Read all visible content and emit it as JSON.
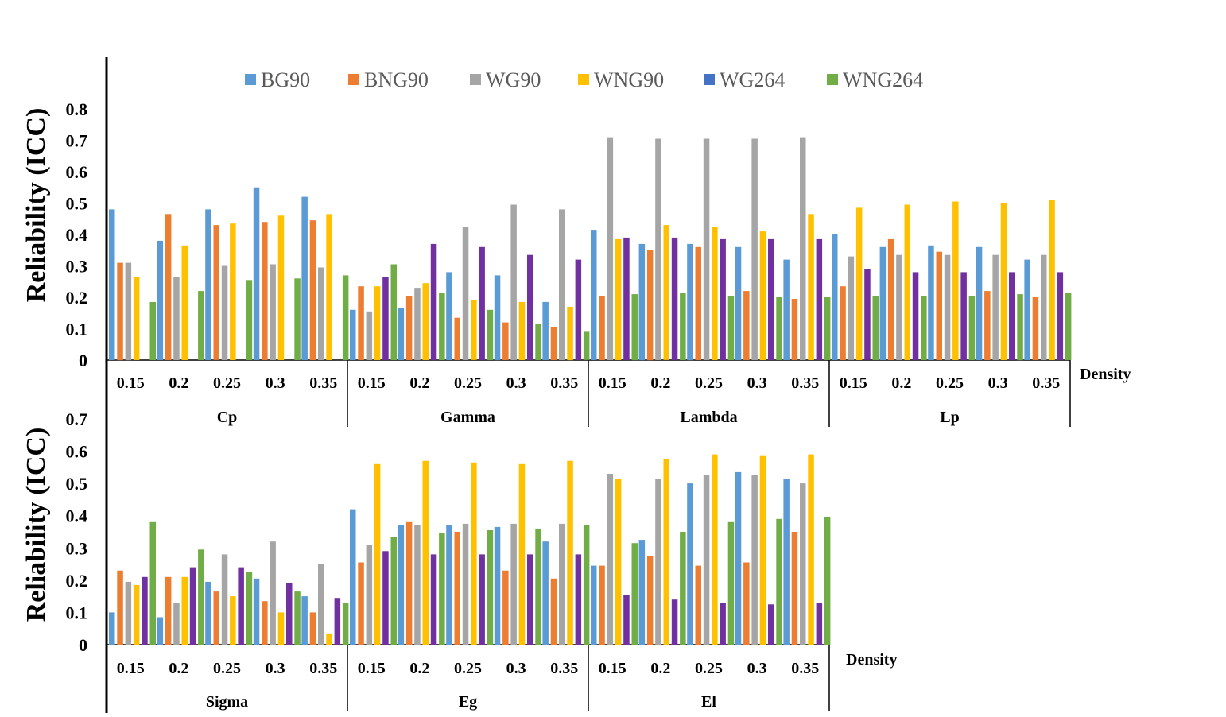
{
  "chart_data": [
    {
      "type": "bar",
      "ylabel": "Reliability (ICC)",
      "xlabel": "Density",
      "ylim": [
        0,
        0.8
      ],
      "yticks": [
        "0",
        "0.1",
        "0.2",
        "0.3",
        "0.4",
        "0.5",
        "0.6",
        "0.7",
        "0.8"
      ],
      "legend_position": "top",
      "series_names": [
        "BG90",
        "BNG90",
        "WG90",
        "WNG90",
        "WG264",
        "WNG264"
      ],
      "groups": [
        {
          "name": "Cp",
          "densities": [
            "0.15",
            "0.2",
            "0.25",
            "0.3",
            "0.35"
          ],
          "values": [
            [
              0.48,
              0.31,
              0.31,
              0.265,
              0.0,
              0.185
            ],
            [
              0.38,
              0.465,
              0.265,
              0.365,
              0.0,
              0.22
            ],
            [
              0.48,
              0.43,
              0.3,
              0.435,
              0.0,
              0.255
            ],
            [
              0.55,
              0.44,
              0.305,
              0.46,
              0.0,
              0.26
            ],
            [
              0.52,
              0.445,
              0.295,
              0.465,
              0.0,
              0.27
            ]
          ]
        },
        {
          "name": "Gamma",
          "densities": [
            "0.15",
            "0.2",
            "0.25",
            "0.3",
            "0.35"
          ],
          "values": [
            [
              0.16,
              0.235,
              0.155,
              0.235,
              0.265,
              0.305
            ],
            [
              0.165,
              0.205,
              0.23,
              0.245,
              0.37,
              0.215
            ],
            [
              0.28,
              0.135,
              0.425,
              0.19,
              0.36,
              0.16
            ],
            [
              0.27,
              0.12,
              0.495,
              0.185,
              0.335,
              0.115
            ],
            [
              0.185,
              0.105,
              0.48,
              0.17,
              0.32,
              0.09
            ]
          ]
        },
        {
          "name": "Lambda",
          "densities": [
            "0.15",
            "0.2",
            "0.25",
            "0.3",
            "0.35"
          ],
          "values": [
            [
              0.415,
              0.205,
              0.71,
              0.385,
              0.39,
              0.21
            ],
            [
              0.37,
              0.35,
              0.705,
              0.43,
              0.39,
              0.215
            ],
            [
              0.37,
              0.36,
              0.705,
              0.425,
              0.385,
              0.205
            ],
            [
              0.36,
              0.22,
              0.705,
              0.41,
              0.385,
              0.2
            ],
            [
              0.32,
              0.195,
              0.71,
              0.465,
              0.385,
              0.2
            ]
          ]
        },
        {
          "name": "Lp",
          "densities": [
            "0.15",
            "0.2",
            "0.25",
            "0.3",
            "0.35"
          ],
          "values": [
            [
              0.4,
              0.235,
              0.33,
              0.485,
              0.29,
              0.205
            ],
            [
              0.36,
              0.385,
              0.335,
              0.495,
              0.28,
              0.205
            ],
            [
              0.365,
              0.345,
              0.335,
              0.505,
              0.28,
              0.205
            ],
            [
              0.36,
              0.22,
              0.335,
              0.5,
              0.28,
              0.21
            ],
            [
              0.32,
              0.2,
              0.335,
              0.51,
              0.28,
              0.215
            ]
          ]
        }
      ]
    },
    {
      "type": "bar",
      "ylabel": "Reliability (ICC)",
      "xlabel": "Density",
      "ylim": [
        0,
        0.7
      ],
      "yticks": [
        "0",
        "0.1",
        "0.2",
        "0.3",
        "0.4",
        "0.5",
        "0.6",
        "0.7"
      ],
      "series_names": [
        "BG90",
        "BNG90",
        "WG90",
        "WNG90",
        "WG264",
        "WNG264"
      ],
      "groups": [
        {
          "name": "Sigma",
          "densities": [
            "0.15",
            "0.2",
            "0.25",
            "0.3",
            "0.35"
          ],
          "values": [
            [
              0.1,
              0.23,
              0.195,
              0.185,
              0.21,
              0.38
            ],
            [
              0.085,
              0.21,
              0.13,
              0.21,
              0.24,
              0.295
            ],
            [
              0.195,
              0.165,
              0.28,
              0.15,
              0.24,
              0.225
            ],
            [
              0.205,
              0.135,
              0.32,
              0.1,
              0.19,
              0.165
            ],
            [
              0.15,
              0.1,
              0.25,
              0.035,
              0.145,
              0.13
            ]
          ]
        },
        {
          "name": "Eg",
          "densities": [
            "0.15",
            "0.2",
            "0.25",
            "0.3",
            "0.35"
          ],
          "values": [
            [
              0.42,
              0.255,
              0.31,
              0.56,
              0.29,
              0.335
            ],
            [
              0.37,
              0.38,
              0.37,
              0.57,
              0.28,
              0.345
            ],
            [
              0.37,
              0.35,
              0.375,
              0.565,
              0.28,
              0.355
            ],
            [
              0.365,
              0.23,
              0.375,
              0.56,
              0.28,
              0.36
            ],
            [
              0.32,
              0.205,
              0.375,
              0.57,
              0.28,
              0.37
            ]
          ]
        },
        {
          "name": "El",
          "densities": [
            "0.15",
            "0.2",
            "0.25",
            "0.3",
            "0.35"
          ],
          "values": [
            [
              0.245,
              0.245,
              0.53,
              0.515,
              0.155,
              0.315
            ],
            [
              0.325,
              0.275,
              0.515,
              0.575,
              0.14,
              0.35
            ],
            [
              0.5,
              0.245,
              0.525,
              0.59,
              0.13,
              0.38
            ],
            [
              0.535,
              0.255,
              0.525,
              0.585,
              0.125,
              0.39
            ],
            [
              0.515,
              0.35,
              0.5,
              0.59,
              0.13,
              0.395
            ]
          ]
        }
      ]
    }
  ],
  "legend": [
    "BG90",
    "BNG90",
    "WG90",
    "WNG90",
    "WG264",
    "WNG264"
  ],
  "colors": {
    "BG90": "#5b9bd5",
    "BNG90": "#ed7d31",
    "WG90": "#a5a5a5",
    "WNG90": "#ffc000",
    "WG264": "#7030a0",
    "WNG264": "#70ad47",
    "legendWG264": "#4472c4",
    "axis": "#000000"
  }
}
